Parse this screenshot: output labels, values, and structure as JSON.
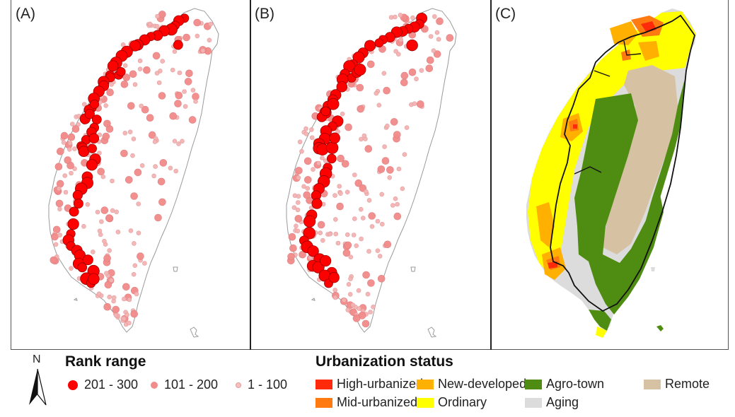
{
  "figure": {
    "panels": [
      {
        "id": "A",
        "label": "(A)",
        "type": "point-map"
      },
      {
        "id": "B",
        "label": "(B)",
        "type": "point-map"
      },
      {
        "id": "C",
        "label": "(C)",
        "type": "choropleth"
      }
    ]
  },
  "north_arrow": {
    "label": "N",
    "icon": "north-arrow-icon"
  },
  "rank_legend": {
    "title": "Rank range",
    "items": [
      {
        "label": "201 - 300",
        "color": "#ff0000",
        "size": "large"
      },
      {
        "label": "101 - 200",
        "color": "#f28b8b",
        "size": "medium"
      },
      {
        "label": "1 - 100",
        "color": "#f4b4b4",
        "size": "small"
      }
    ]
  },
  "urbanization_legend": {
    "title": "Urbanization status",
    "items": [
      {
        "label": "High-urbanized",
        "color": "#ff2a0a"
      },
      {
        "label": "New-developed",
        "color": "#ffb000"
      },
      {
        "label": "Agro-town",
        "color": "#4e8c12"
      },
      {
        "label": "Remote",
        "color": "#d6c2a2"
      },
      {
        "label": "Mid-urbanized",
        "color": "#ff7a10"
      },
      {
        "label": "Ordinary",
        "color": "#ffff00"
      },
      {
        "label": "Aging",
        "color": "#dcdcdc"
      }
    ]
  },
  "colors": {
    "coastline": "#9a9a9a",
    "railway": "#111111",
    "point_stroke": "#8b0000"
  }
}
